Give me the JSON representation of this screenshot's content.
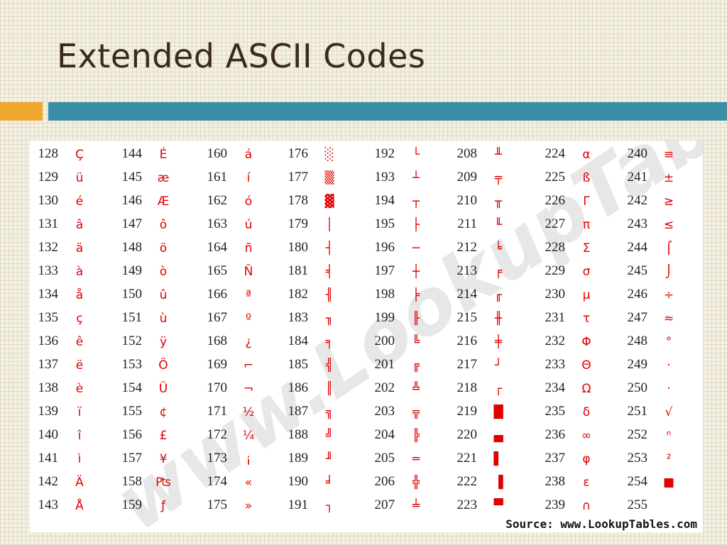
{
  "slide": {
    "title": "Extended ASCII Codes",
    "watermark": "www.LookupTables.com",
    "source": "Source:  www.LookupTables.com",
    "accent_orange": "#f0a830",
    "accent_teal": "#3a8ea8",
    "char_color": "#e00000"
  },
  "columns": [
    [
      {
        "code": "128",
        "char": "Ç"
      },
      {
        "code": "129",
        "char": "ü"
      },
      {
        "code": "130",
        "char": "é"
      },
      {
        "code": "131",
        "char": "â"
      },
      {
        "code": "132",
        "char": "ä"
      },
      {
        "code": "133",
        "char": "à"
      },
      {
        "code": "134",
        "char": "å"
      },
      {
        "code": "135",
        "char": "ç"
      },
      {
        "code": "136",
        "char": "ê"
      },
      {
        "code": "137",
        "char": "ë"
      },
      {
        "code": "138",
        "char": "è"
      },
      {
        "code": "139",
        "char": "ï"
      },
      {
        "code": "140",
        "char": "î"
      },
      {
        "code": "141",
        "char": "ì"
      },
      {
        "code": "142",
        "char": "Ä"
      },
      {
        "code": "143",
        "char": "Å"
      }
    ],
    [
      {
        "code": "144",
        "char": "É"
      },
      {
        "code": "145",
        "char": "æ"
      },
      {
        "code": "146",
        "char": "Æ"
      },
      {
        "code": "147",
        "char": "ô"
      },
      {
        "code": "148",
        "char": "ö"
      },
      {
        "code": "149",
        "char": "ò"
      },
      {
        "code": "150",
        "char": "û"
      },
      {
        "code": "151",
        "char": "ù"
      },
      {
        "code": "152",
        "char": "ÿ"
      },
      {
        "code": "153",
        "char": "Ö"
      },
      {
        "code": "154",
        "char": "Ü"
      },
      {
        "code": "155",
        "char": "¢"
      },
      {
        "code": "156",
        "char": "£"
      },
      {
        "code": "157",
        "char": "¥"
      },
      {
        "code": "158",
        "char": "₧"
      },
      {
        "code": "159",
        "char": "ƒ"
      }
    ],
    [
      {
        "code": "160",
        "char": "á"
      },
      {
        "code": "161",
        "char": "í"
      },
      {
        "code": "162",
        "char": "ó"
      },
      {
        "code": "163",
        "char": "ú"
      },
      {
        "code": "164",
        "char": "ñ"
      },
      {
        "code": "165",
        "char": "Ñ"
      },
      {
        "code": "166",
        "char": "ª"
      },
      {
        "code": "167",
        "char": "º"
      },
      {
        "code": "168",
        "char": "¿"
      },
      {
        "code": "169",
        "char": "⌐"
      },
      {
        "code": "170",
        "char": "¬"
      },
      {
        "code": "171",
        "char": "½"
      },
      {
        "code": "172",
        "char": "¼"
      },
      {
        "code": "173",
        "char": "¡"
      },
      {
        "code": "174",
        "char": "«"
      },
      {
        "code": "175",
        "char": "»"
      }
    ],
    [
      {
        "code": "176",
        "char": "░"
      },
      {
        "code": "177",
        "char": "▒"
      },
      {
        "code": "178",
        "char": "▓"
      },
      {
        "code": "179",
        "char": "│"
      },
      {
        "code": "180",
        "char": "┤"
      },
      {
        "code": "181",
        "char": "╡"
      },
      {
        "code": "182",
        "char": "╢"
      },
      {
        "code": "183",
        "char": "╖"
      },
      {
        "code": "184",
        "char": "╕"
      },
      {
        "code": "185",
        "char": "╣"
      },
      {
        "code": "186",
        "char": "║"
      },
      {
        "code": "187",
        "char": "╗"
      },
      {
        "code": "188",
        "char": "╝"
      },
      {
        "code": "189",
        "char": "╜"
      },
      {
        "code": "190",
        "char": "╛"
      },
      {
        "code": "191",
        "char": "┐"
      }
    ],
    [
      {
        "code": "192",
        "char": "└"
      },
      {
        "code": "193",
        "char": "┴"
      },
      {
        "code": "194",
        "char": "┬"
      },
      {
        "code": "195",
        "char": "├"
      },
      {
        "code": "196",
        "char": "─"
      },
      {
        "code": "197",
        "char": "┼"
      },
      {
        "code": "198",
        "char": "╞"
      },
      {
        "code": "199",
        "char": "╟"
      },
      {
        "code": "200",
        "char": "╚"
      },
      {
        "code": "201",
        "char": "╔"
      },
      {
        "code": "202",
        "char": "╩"
      },
      {
        "code": "203",
        "char": "╦"
      },
      {
        "code": "204",
        "char": "╠"
      },
      {
        "code": "205",
        "char": "═"
      },
      {
        "code": "206",
        "char": "╬"
      },
      {
        "code": "207",
        "char": "╧"
      }
    ],
    [
      {
        "code": "208",
        "char": "╨"
      },
      {
        "code": "209",
        "char": "╤"
      },
      {
        "code": "210",
        "char": "╥"
      },
      {
        "code": "211",
        "char": "╙"
      },
      {
        "code": "212",
        "char": "╘"
      },
      {
        "code": "213",
        "char": "╒"
      },
      {
        "code": "214",
        "char": "╓"
      },
      {
        "code": "215",
        "char": "╫"
      },
      {
        "code": "216",
        "char": "╪"
      },
      {
        "code": "217",
        "char": "┘"
      },
      {
        "code": "218",
        "char": "┌"
      },
      {
        "code": "219",
        "char": "█"
      },
      {
        "code": "220",
        "char": "▄"
      },
      {
        "code": "221",
        "char": "▌"
      },
      {
        "code": "222",
        "char": "▐"
      },
      {
        "code": "223",
        "char": "▀"
      }
    ],
    [
      {
        "code": "224",
        "char": "α"
      },
      {
        "code": "225",
        "char": "ß"
      },
      {
        "code": "226",
        "char": "Γ"
      },
      {
        "code": "227",
        "char": "π"
      },
      {
        "code": "228",
        "char": "Σ"
      },
      {
        "code": "229",
        "char": "σ"
      },
      {
        "code": "230",
        "char": "µ"
      },
      {
        "code": "231",
        "char": "τ"
      },
      {
        "code": "232",
        "char": "Φ"
      },
      {
        "code": "233",
        "char": "Θ"
      },
      {
        "code": "234",
        "char": "Ω"
      },
      {
        "code": "235",
        "char": "δ"
      },
      {
        "code": "236",
        "char": "∞"
      },
      {
        "code": "237",
        "char": "φ"
      },
      {
        "code": "238",
        "char": "ε"
      },
      {
        "code": "239",
        "char": "∩"
      }
    ],
    [
      {
        "code": "240",
        "char": "≡"
      },
      {
        "code": "241",
        "char": "±"
      },
      {
        "code": "242",
        "char": "≥"
      },
      {
        "code": "243",
        "char": "≤"
      },
      {
        "code": "244",
        "char": "⌠"
      },
      {
        "code": "245",
        "char": "⌡"
      },
      {
        "code": "246",
        "char": "÷"
      },
      {
        "code": "247",
        "char": "≈"
      },
      {
        "code": "248",
        "char": "°"
      },
      {
        "code": "249",
        "char": "·"
      },
      {
        "code": "250",
        "char": "·"
      },
      {
        "code": "251",
        "char": "√"
      },
      {
        "code": "252",
        "char": "ⁿ"
      },
      {
        "code": "253",
        "char": "²"
      },
      {
        "code": "254",
        "char": "■"
      },
      {
        "code": "255",
        "char": ""
      }
    ]
  ]
}
